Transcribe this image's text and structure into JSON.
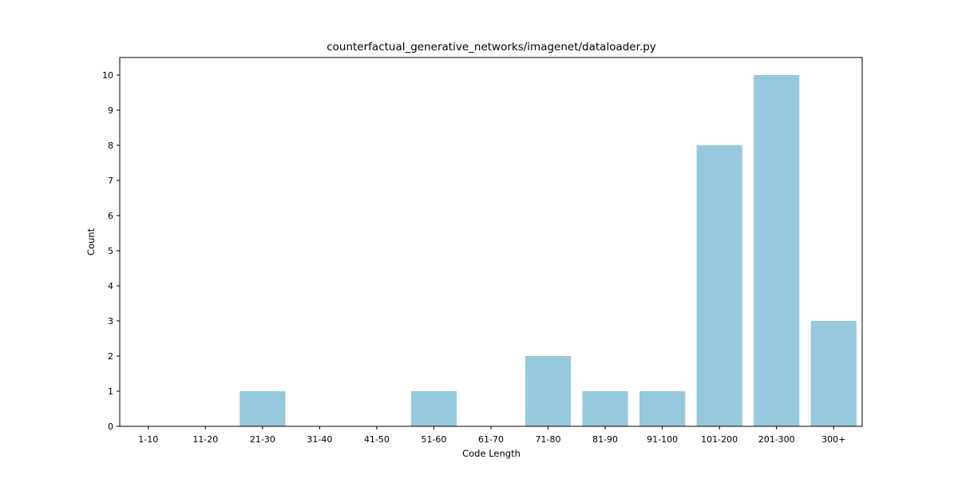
{
  "chart_data": {
    "type": "bar",
    "title": "counterfactual_generative_networks/imagenet/dataloader.py",
    "xlabel": "Code Length",
    "ylabel": "Count",
    "categories": [
      "1-10",
      "11-20",
      "21-30",
      "31-40",
      "41-50",
      "51-60",
      "61-70",
      "71-80",
      "81-90",
      "91-100",
      "101-200",
      "201-300",
      "300+"
    ],
    "values": [
      0,
      0,
      1,
      0,
      0,
      1,
      0,
      2,
      1,
      1,
      8,
      10,
      3
    ],
    "ylim": [
      0,
      10.5
    ],
    "yticks": [
      0,
      1,
      2,
      3,
      4,
      5,
      6,
      7,
      8,
      9,
      10
    ],
    "bar_color": "#96c9de",
    "grid": false,
    "legend": "none"
  }
}
